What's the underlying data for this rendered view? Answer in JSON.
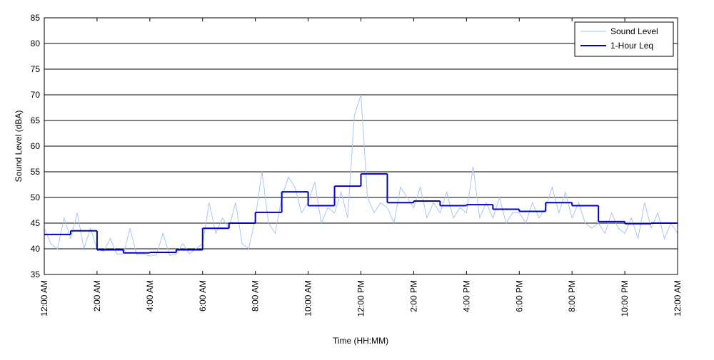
{
  "chart_data": {
    "type": "line",
    "ylabel": "Sound Level (dBA)",
    "xlabel": "Time (HH:MM)",
    "xlim": [
      0,
      24
    ],
    "ylim": [
      35,
      85
    ],
    "yticks": [
      35,
      40,
      45,
      50,
      55,
      60,
      65,
      70,
      75,
      80,
      85
    ],
    "xticks": [
      {
        "value": 0,
        "label": "12:00 AM"
      },
      {
        "value": 2,
        "label": "2:00 AM"
      },
      {
        "value": 4,
        "label": "4:00 AM"
      },
      {
        "value": 6,
        "label": "6:00 AM"
      },
      {
        "value": 8,
        "label": "8:00 AM"
      },
      {
        "value": 10,
        "label": "10:00 AM"
      },
      {
        "value": 12,
        "label": "12:00 PM"
      },
      {
        "value": 14,
        "label": "2:00 PM"
      },
      {
        "value": 16,
        "label": "4:00 PM"
      },
      {
        "value": 18,
        "label": "6:00 PM"
      },
      {
        "value": 20,
        "label": "8:00 PM"
      },
      {
        "value": 22,
        "label": "10:00 PM"
      },
      {
        "value": 24,
        "label": "12:00 AM"
      }
    ],
    "grid": true,
    "legend": "upper right",
    "series": [
      {
        "name": "Sound Level",
        "color": "#a9c4f5",
        "style": "line",
        "x": [
          0,
          0.25,
          0.5,
          0.75,
          1,
          1.25,
          1.5,
          1.75,
          2,
          2.25,
          2.5,
          2.75,
          3,
          3.25,
          3.5,
          3.75,
          4,
          4.25,
          4.5,
          4.75,
          5,
          5.25,
          5.5,
          5.75,
          6,
          6.25,
          6.5,
          6.75,
          7,
          7.25,
          7.5,
          7.75,
          8,
          8.25,
          8.5,
          8.75,
          9,
          9.25,
          9.5,
          9.75,
          10,
          10.25,
          10.5,
          10.75,
          11,
          11.25,
          11.5,
          11.75,
          12,
          12.25,
          12.5,
          12.75,
          13,
          13.25,
          13.5,
          13.75,
          14,
          14.25,
          14.5,
          14.75,
          15,
          15.25,
          15.5,
          15.75,
          16,
          16.25,
          16.5,
          16.75,
          17,
          17.25,
          17.5,
          17.75,
          18,
          18.25,
          18.5,
          18.75,
          19,
          19.25,
          19.5,
          19.75,
          20,
          20.25,
          20.5,
          20.75,
          21,
          21.25,
          21.5,
          21.75,
          22,
          22.25,
          22.5,
          22.75,
          23,
          23.25,
          23.5,
          23.75,
          24
        ],
        "values": [
          44,
          41,
          40,
          46,
          42,
          47,
          40,
          44,
          40,
          39.5,
          42,
          39,
          39,
          44,
          38.8,
          39,
          38.6,
          38.8,
          43,
          38.7,
          39,
          41,
          39,
          40,
          41,
          49,
          43,
          46,
          44,
          49,
          41,
          40,
          46,
          55,
          45,
          43,
          50,
          54,
          52,
          47,
          49,
          53,
          45,
          48,
          47,
          51,
          46,
          66,
          70,
          50,
          47,
          49,
          48,
          45,
          52,
          50,
          48,
          52,
          46,
          49,
          47,
          51,
          46,
          48,
          47,
          56,
          46,
          49,
          46,
          50,
          45,
          47,
          47,
          45,
          49,
          46,
          48,
          52,
          47,
          51,
          46,
          49,
          45,
          44,
          45,
          43,
          47,
          44,
          43,
          46,
          42,
          49,
          44,
          47,
          42,
          45,
          43
        ]
      },
      {
        "name": "1-Hour Leq",
        "color": "#0000c8",
        "style": "step",
        "x": [
          0,
          1,
          2,
          3,
          4,
          5,
          6,
          7,
          8,
          9,
          10,
          11,
          12,
          13,
          14,
          15,
          16,
          17,
          18,
          19,
          20,
          21,
          22,
          23
        ],
        "values": [
          42.8,
          43.5,
          39.8,
          39.2,
          39.3,
          39.8,
          44.0,
          45.0,
          47.1,
          51.1,
          48.4,
          52.2,
          54.6,
          49.0,
          49.3,
          48.4,
          48.6,
          47.7,
          47.3,
          49.0,
          48.4,
          45.3,
          44.9,
          45.0
        ]
      }
    ]
  }
}
